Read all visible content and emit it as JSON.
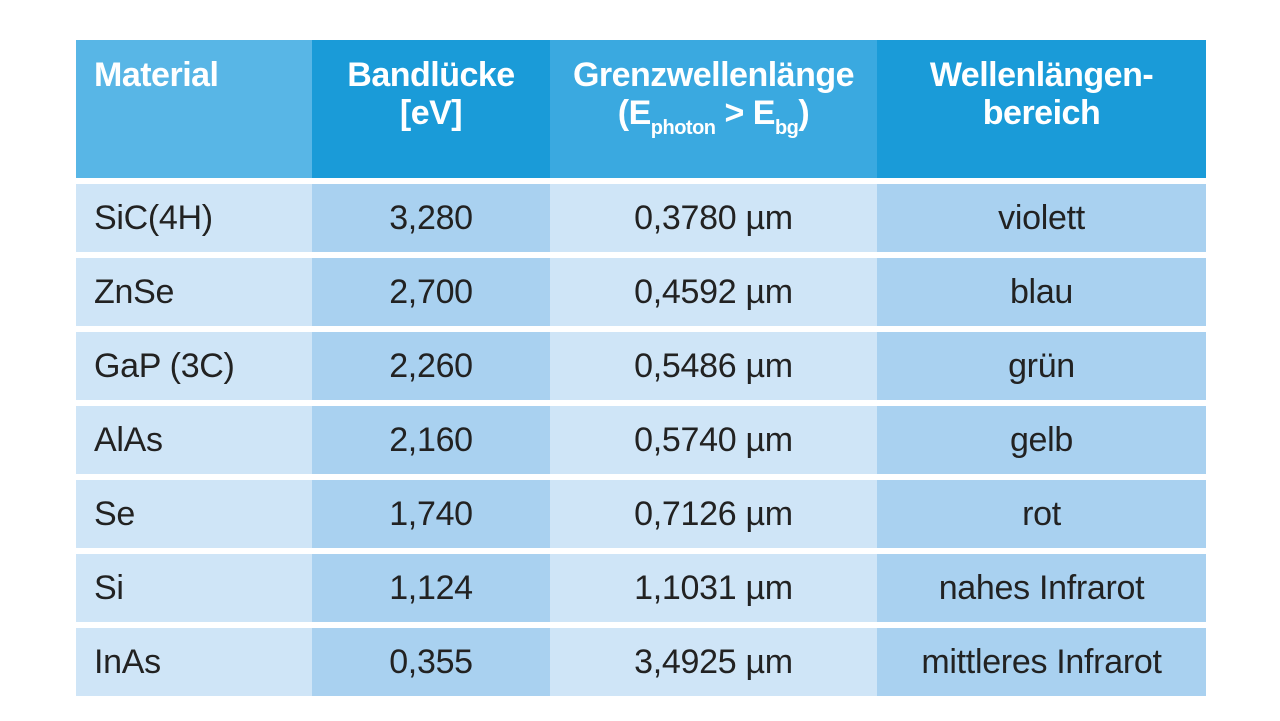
{
  "header": {
    "material": "Material",
    "bandgap_line1": "Bandlücke",
    "bandgap_line2": "[eV]",
    "cutoff_line1": "Grenzwellenlänge",
    "cutoff_open": "(E",
    "cutoff_sub1": "photon",
    "cutoff_mid": " > E",
    "cutoff_sub2": "bg",
    "cutoff_close": ")",
    "range_line1": "Wellenlängen-",
    "range_line2": "bereich"
  },
  "rows": [
    {
      "material": "SiC(4H)",
      "bandgap": "3,280",
      "cutoff": "0,3780 µm",
      "range": "violett"
    },
    {
      "material": "ZnSe",
      "bandgap": "2,700",
      "cutoff": "0,4592 µm",
      "range": "blau"
    },
    {
      "material": "GaP (3C)",
      "bandgap": "2,260",
      "cutoff": "0,5486 µm",
      "range": "grün"
    },
    {
      "material": "AlAs",
      "bandgap": "2,160",
      "cutoff": "0,5740 µm",
      "range": "gelb"
    },
    {
      "material": "Se",
      "bandgap": "1,740",
      "cutoff": "0,7126 µm",
      "range": "rot"
    },
    {
      "material": "Si",
      "bandgap": "1,124",
      "cutoff": "1,1031 µm",
      "range": "nahes Infrarot"
    },
    {
      "material": "InAs",
      "bandgap": "0,355",
      "cutoff": "3,4925 µm",
      "range": "mittleres Infrarot"
    }
  ],
  "colors": {
    "header_light": "#58b6e6",
    "header_dark": "#1a9bd8",
    "cell_light": "#cfe5f7",
    "cell_dark": "#a9d1f0"
  }
}
